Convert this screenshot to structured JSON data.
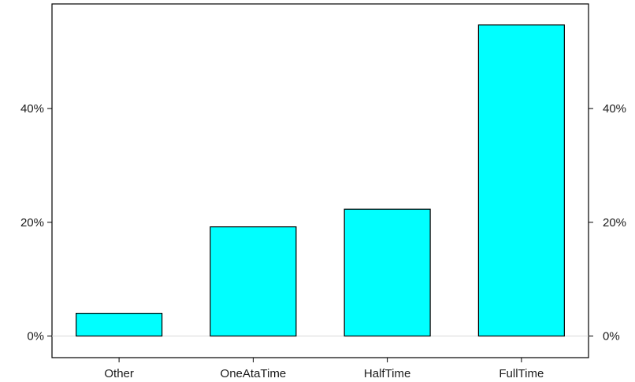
{
  "chart_data": {
    "type": "bar",
    "categories": [
      "Other",
      "OneAtaTime",
      "HalfTime",
      "FullTime"
    ],
    "values": [
      4.0,
      19.2,
      22.3,
      54.7
    ],
    "value_unit": "%",
    "ylim": [
      -3.8,
      58.4
    ],
    "yticks": [
      0,
      20,
      40
    ],
    "ytick_labels": [
      "0%",
      "20%",
      "40%"
    ],
    "bar_color": "#00ffff",
    "border_color": "#000000",
    "zero_line_color": "#d9d9d9",
    "grid": false,
    "right_axis": true
  }
}
